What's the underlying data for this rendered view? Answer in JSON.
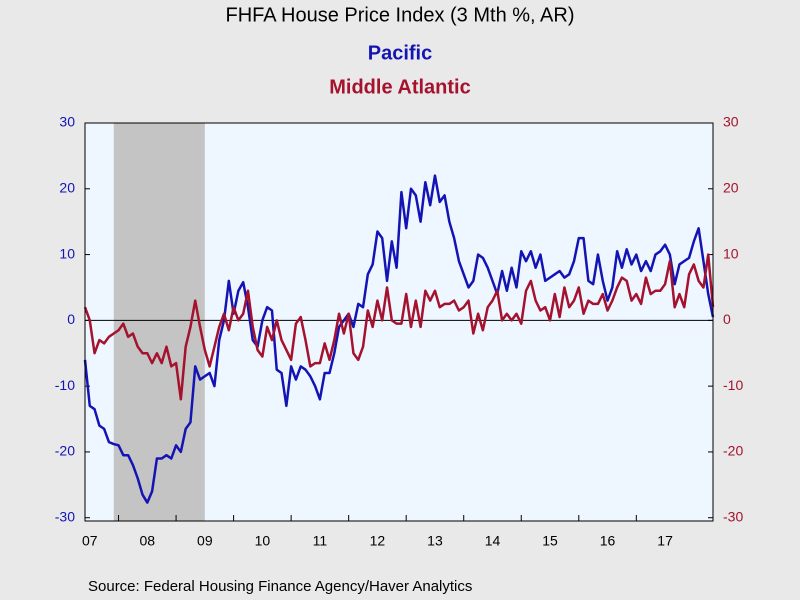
{
  "chart_data": {
    "type": "line",
    "title": "FHFA House Price Index (3 Mth %, AR)",
    "source": "Source:  Federal Housing Finance Agency/Haver Analytics",
    "x": [
      2007.417,
      2007.5,
      2007.583,
      2007.667,
      2007.75,
      2007.833,
      2007.917,
      2008,
      2008.083,
      2008.167,
      2008.25,
      2008.333,
      2008.417,
      2008.5,
      2008.583,
      2008.667,
      2008.75,
      2008.833,
      2008.917,
      2009,
      2009.083,
      2009.167,
      2009.25,
      2009.333,
      2009.417,
      2009.5,
      2009.583,
      2009.667,
      2009.75,
      2009.833,
      2009.917,
      2010,
      2010.083,
      2010.167,
      2010.25,
      2010.333,
      2010.417,
      2010.5,
      2010.583,
      2010.667,
      2010.75,
      2010.833,
      2010.917,
      2011,
      2011.083,
      2011.167,
      2011.25,
      2011.333,
      2011.417,
      2011.5,
      2011.583,
      2011.667,
      2011.75,
      2011.833,
      2011.917,
      2012,
      2012.083,
      2012.167,
      2012.25,
      2012.333,
      2012.417,
      2012.5,
      2012.583,
      2012.667,
      2012.75,
      2012.833,
      2012.917,
      2013,
      2013.083,
      2013.167,
      2013.25,
      2013.333,
      2013.417,
      2013.5,
      2013.583,
      2013.667,
      2013.75,
      2013.833,
      2013.917,
      2014,
      2014.083,
      2014.167,
      2014.25,
      2014.333,
      2014.417,
      2014.5,
      2014.583,
      2014.667,
      2014.75,
      2014.833,
      2014.917,
      2015,
      2015.083,
      2015.167,
      2015.25,
      2015.333,
      2015.417,
      2015.5,
      2015.583,
      2015.667,
      2015.75,
      2015.833,
      2015.917,
      2016,
      2016.083,
      2016.167,
      2016.25,
      2016.333,
      2016.417,
      2016.5,
      2016.583,
      2016.667,
      2016.75,
      2016.833,
      2016.917,
      2017,
      2017.083,
      2017.167,
      2017.25,
      2017.333,
      2017.417,
      2017.5,
      2017.583,
      2017.667,
      2017.75,
      2017.833,
      2017.917,
      2018,
      2018.083,
      2018.167,
      2018.25,
      2018.333
    ],
    "xlim": [
      2007.417,
      2018.333
    ],
    "xticks": [
      {
        "value": 2007,
        "label": "07"
      },
      {
        "value": 2008,
        "label": "08"
      },
      {
        "value": 2009,
        "label": "09"
      },
      {
        "value": 2010,
        "label": "10"
      },
      {
        "value": 2011,
        "label": "11"
      },
      {
        "value": 2012,
        "label": "12"
      },
      {
        "value": 2013,
        "label": "13"
      },
      {
        "value": 2014,
        "label": "14"
      },
      {
        "value": 2015,
        "label": "15"
      },
      {
        "value": 2016,
        "label": "16"
      },
      {
        "value": 2017,
        "label": "17"
      }
    ],
    "ylim": [
      -30.5,
      30
    ],
    "yticks": [
      -30,
      -20,
      -10,
      0,
      10,
      20,
      30
    ],
    "y2lim": [
      -30.5,
      30
    ],
    "y2ticks": [
      -30,
      -20,
      -10,
      0,
      10,
      20,
      30
    ],
    "recession": [
      2007.917,
      2009.5
    ],
    "series": [
      {
        "name": "Pacific",
        "color": "#1414b4",
        "axis": "y",
        "values": [
          -6,
          -13,
          -13.5,
          -16,
          -16.5,
          -18.5,
          -18.8,
          -19,
          -20.5,
          -20.5,
          -22,
          -24,
          -26.5,
          -27.7,
          -26,
          -21,
          -21,
          -20.5,
          -21,
          -19,
          -20,
          -16.5,
          -15.5,
          -7,
          -9,
          -8.5,
          -8,
          -10,
          -3,
          0,
          6,
          1,
          4.5,
          5.8,
          2,
          -3,
          -4,
          0,
          2,
          1.5,
          -7.5,
          -8,
          -13,
          -7,
          -9,
          -7,
          -7.5,
          -8.5,
          -10,
          -12,
          -8,
          -8,
          -5,
          -1,
          0,
          1,
          -1,
          2.5,
          2,
          7,
          8.5,
          13.5,
          12.5,
          6,
          12,
          8,
          19.5,
          14,
          20,
          19,
          15,
          21,
          17.5,
          22,
          18,
          19,
          15,
          12.5,
          9,
          7,
          5,
          6,
          10,
          9.5,
          8,
          6,
          4,
          7.5,
          4.5,
          8,
          5,
          10.5,
          9,
          10.5,
          8,
          10,
          6,
          6.5,
          7,
          7.5,
          6.5,
          7,
          9,
          12.5,
          12.5,
          6,
          5.5,
          10,
          6,
          3,
          5,
          10.5,
          8,
          10.8,
          8.5,
          10,
          7.5,
          9,
          7.5,
          10,
          10.5,
          11.5,
          10,
          5.5,
          8.5,
          9,
          9.5,
          12,
          14,
          9,
          4,
          0.5
        ]
      },
      {
        "name": "Middle Atlantic",
        "color": "#a4122e",
        "axis": "y2",
        "values": [
          2,
          0,
          -5,
          -3,
          -3.5,
          -2.5,
          -2,
          -1.5,
          -0.5,
          -2.5,
          -2,
          -4,
          -5,
          -5,
          -6.5,
          -5,
          -6.5,
          -4,
          -7,
          -6.5,
          -12,
          -4,
          -1,
          3,
          -1,
          -4.5,
          -7,
          -4,
          -1,
          1,
          -1.5,
          2,
          0,
          1,
          4.5,
          -1,
          -4.5,
          -5.5,
          -1,
          -3,
          0,
          -3,
          -4.5,
          -6,
          -0.5,
          0.5,
          -3,
          -7,
          -6.5,
          -6.5,
          -3.5,
          -6,
          -3,
          1,
          -2,
          1,
          -5,
          -6,
          -4,
          1.5,
          -1,
          3,
          0,
          5,
          0,
          -0.5,
          -0.5,
          4,
          -1,
          3,
          -1,
          4.5,
          3,
          4.5,
          2,
          2.5,
          2.5,
          3,
          1.5,
          2,
          3,
          -2,
          1,
          -1.5,
          2,
          3,
          4.5,
          0,
          1,
          0,
          1,
          -0.5,
          4.5,
          6,
          3,
          1.5,
          2,
          0,
          4,
          0.5,
          5,
          2,
          3,
          5,
          1,
          3,
          2.5,
          2.5,
          4,
          1.5,
          3,
          5,
          6.5,
          6,
          3,
          4,
          2.5,
          6.5,
          4,
          4.5,
          4.5,
          5.5,
          9,
          2,
          4,
          2,
          7,
          8.5,
          6,
          5,
          10,
          2
        ]
      }
    ]
  }
}
